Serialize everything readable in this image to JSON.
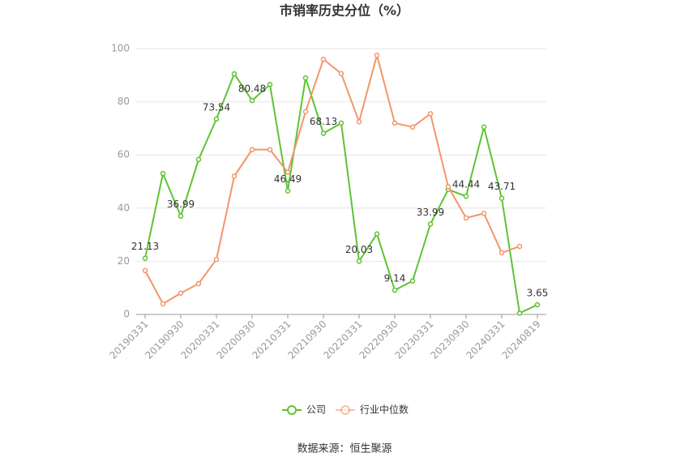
{
  "chart_data": {
    "type": "line",
    "title": "市销率历史分位（%）",
    "source": "数据来源：恒生聚源",
    "categories": [
      "20190331",
      null,
      "20190930",
      null,
      "20200331",
      null,
      "20200930",
      null,
      "20210331",
      null,
      "20210930",
      null,
      "20220331",
      null,
      "20220930",
      null,
      "20230331",
      null,
      "20230930",
      null,
      "20240331",
      null,
      "20240819"
    ],
    "series": [
      {
        "name": "公司",
        "color": "#5ec432",
        "values": [
          21.13,
          53,
          36.99,
          58.3,
          73.54,
          90.5,
          80.48,
          86.5,
          46.49,
          89,
          68.13,
          72,
          20.03,
          30.3,
          9.14,
          12.6,
          33.99,
          47,
          44.44,
          70.5,
          43.71,
          0.5,
          3.65
        ],
        "value_labels": [
          "21.13",
          null,
          "36.99",
          null,
          "73.54",
          null,
          "80.48",
          null,
          "46.49",
          null,
          "68.13",
          null,
          "20.03",
          null,
          "9.14",
          null,
          "33.99",
          null,
          "44.44",
          null,
          "43.71",
          null,
          "3.65"
        ]
      },
      {
        "name": "行业中位数",
        "color": "#f4956a",
        "values": [
          16.5,
          4,
          8,
          11.6,
          20.7,
          52,
          62,
          62,
          53.5,
          76.3,
          96,
          90.6,
          72.5,
          97.5,
          72,
          70.5,
          75.5,
          48,
          36.3,
          38,
          23.2,
          25.6,
          null
        ]
      }
    ],
    "ylim": [
      0,
      100
    ],
    "yticks": [
      0,
      20,
      40,
      60,
      80,
      100
    ],
    "grid": true
  }
}
